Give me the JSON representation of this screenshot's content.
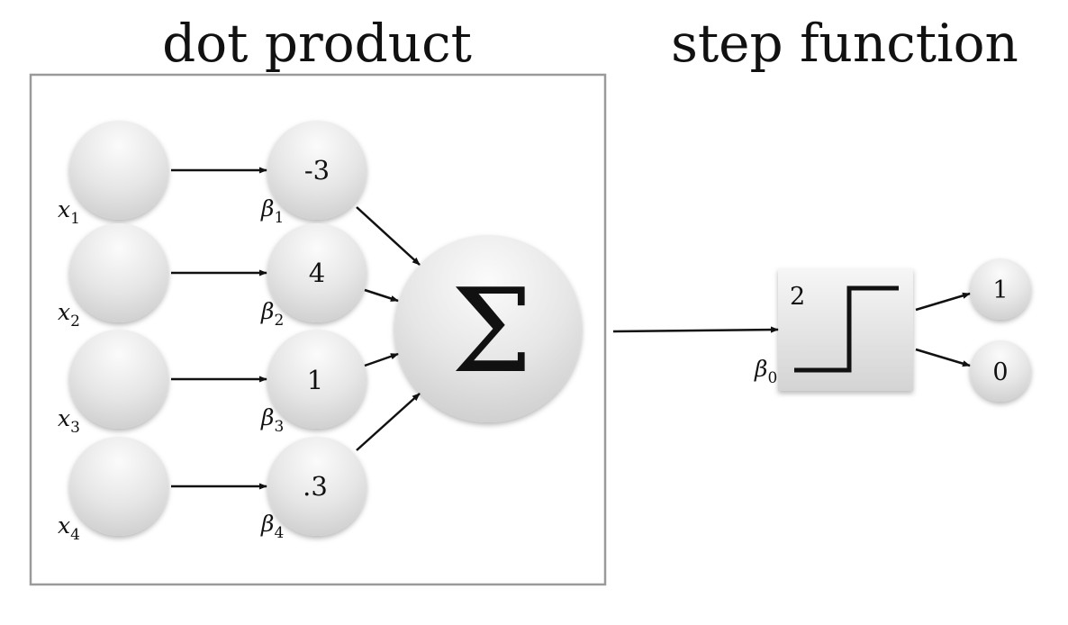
{
  "titles": {
    "dot_product": "dot product",
    "step_function": "step function"
  },
  "inputs": [
    {
      "name": "x",
      "sub": "1"
    },
    {
      "name": "x",
      "sub": "2"
    },
    {
      "name": "x",
      "sub": "3"
    },
    {
      "name": "x",
      "sub": "4"
    }
  ],
  "weights": [
    {
      "value": "-3",
      "name": "β",
      "sub": "1"
    },
    {
      "value": "4",
      "name": "β",
      "sub": "2"
    },
    {
      "value": "1",
      "name": "β",
      "sub": "3"
    },
    {
      "value": ".3",
      "name": "β",
      "sub": "4"
    }
  ],
  "sum_symbol": "Σ",
  "step": {
    "threshold": "2",
    "bias_name": "β",
    "bias_sub": "0"
  },
  "outputs": [
    "1",
    "0"
  ]
}
